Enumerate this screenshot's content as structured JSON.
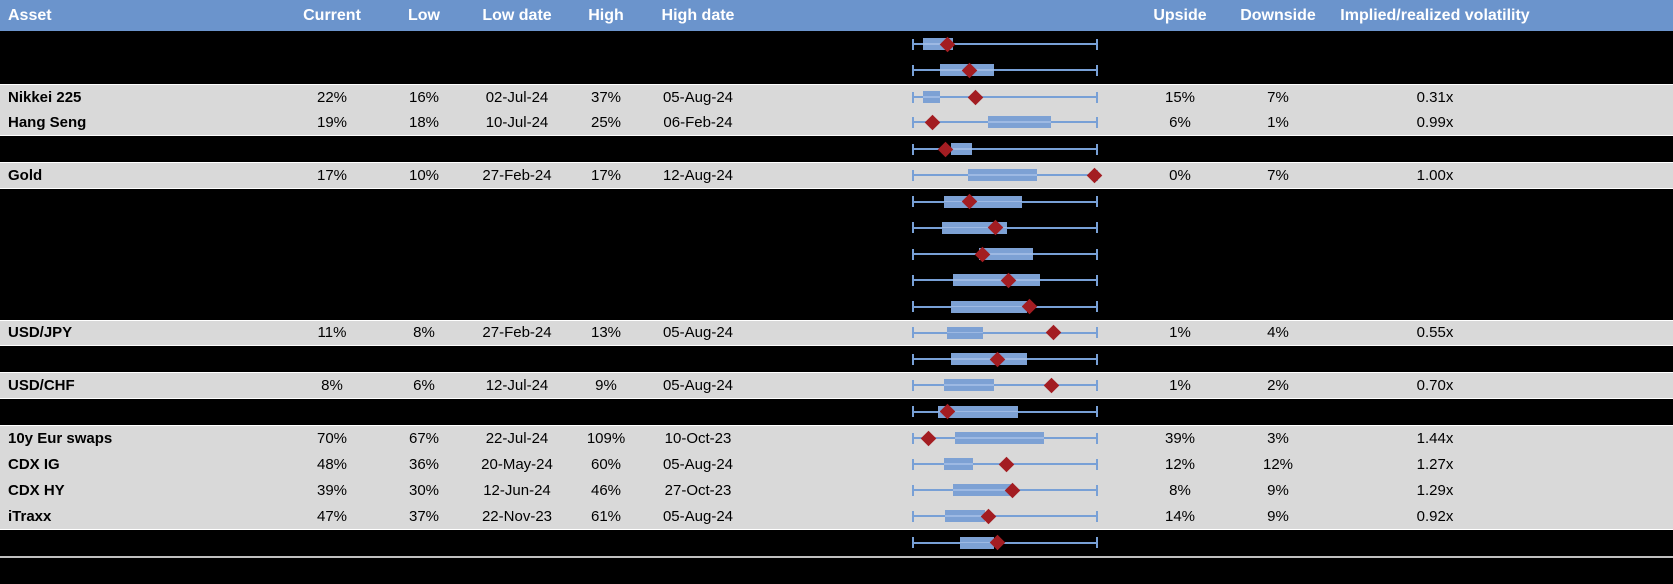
{
  "header": {
    "columns": [
      {
        "id": "asset",
        "label": "Asset"
      },
      {
        "id": "current",
        "label": "Current"
      },
      {
        "id": "low",
        "label": "Low"
      },
      {
        "id": "low_date",
        "label": "Low date"
      },
      {
        "id": "high",
        "label": "High"
      },
      {
        "id": "high_date",
        "label": "High date"
      },
      {
        "id": "upside",
        "label": "Upside"
      },
      {
        "id": "downside",
        "label": "Downside"
      },
      {
        "id": "ratio",
        "label": "Implied/realized volatility"
      }
    ]
  },
  "colors": {
    "header_bg": "#6B94CC",
    "header_text": "#FFFFFF",
    "row_gray": "#D9D9D9",
    "row_hidden": "#000000",
    "box_fill": "#7DA1D4",
    "whisker": "#78A0D6",
    "marker": "#A31D22",
    "divider": "#BFBFBF",
    "text": "#000000"
  },
  "chart_data": {
    "type": "table",
    "title": "Implied volatility ranges with box-whisker chart",
    "embedded_chart": {
      "type": "boxplot-horizontal",
      "description": "Per row: whiskers span the full low-high volatility range (normalized 0-1); blue box marks an inner band; red diamond marks the current level within the range.",
      "x_range": [
        0,
        1
      ],
      "marker_legend": "red diamond = current implied volatility position in range"
    },
    "rows": [
      {
        "kind": "hidden",
        "asset": "",
        "box": [
          0.06,
          0.22
        ],
        "marker": 0.19
      },
      {
        "kind": "hidden",
        "asset": "",
        "box": [
          0.15,
          0.44
        ],
        "marker": 0.31
      },
      {
        "kind": "data",
        "asset": "Nikkei 225",
        "current": "22%",
        "low": "16%",
        "low_date": "02-Jul-24",
        "high": "37%",
        "high_date": "05-Aug-24",
        "upside": "15%",
        "downside": "7%",
        "ratio": "0.31x",
        "box": [
          0.06,
          0.15
        ],
        "marker": 0.34
      },
      {
        "kind": "data",
        "asset": "Hang Seng",
        "current": "19%",
        "low": "18%",
        "low_date": "10-Jul-24",
        "high": "25%",
        "high_date": "06-Feb-24",
        "upside": "6%",
        "downside": "1%",
        "ratio": "0.99x",
        "box": [
          0.41,
          0.75
        ],
        "marker": 0.11
      },
      {
        "kind": "hidden",
        "asset": "",
        "box": [
          0.21,
          0.32
        ],
        "marker": 0.18
      },
      {
        "kind": "data",
        "asset": "Gold",
        "current": "17%",
        "low": "10%",
        "low_date": "27-Feb-24",
        "high": "17%",
        "high_date": "12-Aug-24",
        "upside": "0%",
        "downside": "7%",
        "ratio": "1.00x",
        "box": [
          0.3,
          0.67
        ],
        "marker": 0.98
      },
      {
        "kind": "hidden",
        "asset": "",
        "box": [
          0.17,
          0.59
        ],
        "marker": 0.31
      },
      {
        "kind": "hidden",
        "asset": "",
        "box": [
          0.16,
          0.51
        ],
        "marker": 0.45
      },
      {
        "kind": "hidden",
        "asset": "",
        "box": [
          0.36,
          0.65
        ],
        "marker": 0.38
      },
      {
        "kind": "hidden",
        "asset": "",
        "box": [
          0.22,
          0.69
        ],
        "marker": 0.52
      },
      {
        "kind": "hidden",
        "asset": "",
        "box": [
          0.21,
          0.62
        ],
        "marker": 0.63
      },
      {
        "kind": "data",
        "asset": "USD/JPY",
        "current": "11%",
        "low": "8%",
        "low_date": "27-Feb-24",
        "high": "13%",
        "high_date": "05-Aug-24",
        "upside": "1%",
        "downside": "4%",
        "ratio": "0.55x",
        "box": [
          0.19,
          0.38
        ],
        "marker": 0.76
      },
      {
        "kind": "hidden",
        "asset": "",
        "box": [
          0.21,
          0.62
        ],
        "marker": 0.46
      },
      {
        "kind": "data",
        "asset": "USD/CHF",
        "current": "8%",
        "low": "6%",
        "low_date": "12-Jul-24",
        "high": "9%",
        "high_date": "05-Aug-24",
        "upside": "1%",
        "downside": "2%",
        "ratio": "0.70x",
        "box": [
          0.17,
          0.44
        ],
        "marker": 0.75
      },
      {
        "kind": "hidden",
        "asset": "",
        "box": [
          0.14,
          0.57
        ],
        "marker": 0.19
      },
      {
        "kind": "data",
        "asset": "10y Eur swaps",
        "current": "70%",
        "low": "67%",
        "low_date": "22-Jul-24",
        "high": "109%",
        "high_date": "10-Oct-23",
        "upside": "39%",
        "downside": "3%",
        "ratio": "1.44x",
        "box": [
          0.23,
          0.71
        ],
        "marker": 0.09
      },
      {
        "kind": "data",
        "asset": "CDX IG",
        "current": "48%",
        "low": "36%",
        "low_date": "20-May-24",
        "high": "60%",
        "high_date": "05-Aug-24",
        "upside": "12%",
        "downside": "12%",
        "ratio": "1.27x",
        "box": [
          0.17,
          0.33
        ],
        "marker": 0.51
      },
      {
        "kind": "data",
        "asset": "CDX HY",
        "current": "39%",
        "low": "30%",
        "low_date": "12-Jun-24",
        "high": "46%",
        "high_date": "27-Oct-23",
        "upside": "8%",
        "downside": "9%",
        "ratio": "1.29x",
        "box": [
          0.22,
          0.53
        ],
        "marker": 0.54
      },
      {
        "kind": "data",
        "asset": "iTraxx",
        "current": "47%",
        "low": "37%",
        "low_date": "22-Nov-23",
        "high": "61%",
        "high_date": "05-Aug-24",
        "upside": "14%",
        "downside": "9%",
        "ratio": "0.92x",
        "box": [
          0.18,
          0.39
        ],
        "marker": 0.41
      },
      {
        "kind": "hidden",
        "asset": "",
        "box": [
          0.26,
          0.44
        ],
        "marker": 0.46
      }
    ]
  }
}
